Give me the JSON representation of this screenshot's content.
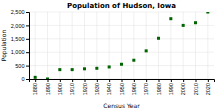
{
  "chart_data": {
    "type": "scatter",
    "title": "Population of Hudson, Iowa",
    "xlabel": "Census Year",
    "ylabel": "Population",
    "x": [
      1880,
      1890,
      1900,
      1910,
      1920,
      1930,
      1940,
      1950,
      1960,
      1970,
      1980,
      1990,
      2000,
      2010,
      2020
    ],
    "values": [
      62,
      0,
      350,
      350,
      380,
      400,
      450,
      550,
      700,
      1050,
      1520,
      2250,
      2000,
      2100,
      2500
    ],
    "color": "#006400",
    "marker": "square",
    "xlim": [
      1875,
      2025
    ],
    "xticks": [
      1880,
      1890,
      1900,
      1910,
      1920,
      1930,
      1940,
      1950,
      1960,
      1970,
      1980,
      1990,
      2000,
      2010,
      2020
    ],
    "ylim": [
      0,
      2500
    ],
    "yticks": [
      0,
      500,
      {
        "value": 1000,
        "label": "1,000"
      },
      {
        "value": 1500,
        "label": "1,500"
      },
      {
        "value": 2000,
        "label": "2,000"
      },
      {
        "value": 2500,
        "label": "2,500"
      }
    ],
    "grid": true
  }
}
